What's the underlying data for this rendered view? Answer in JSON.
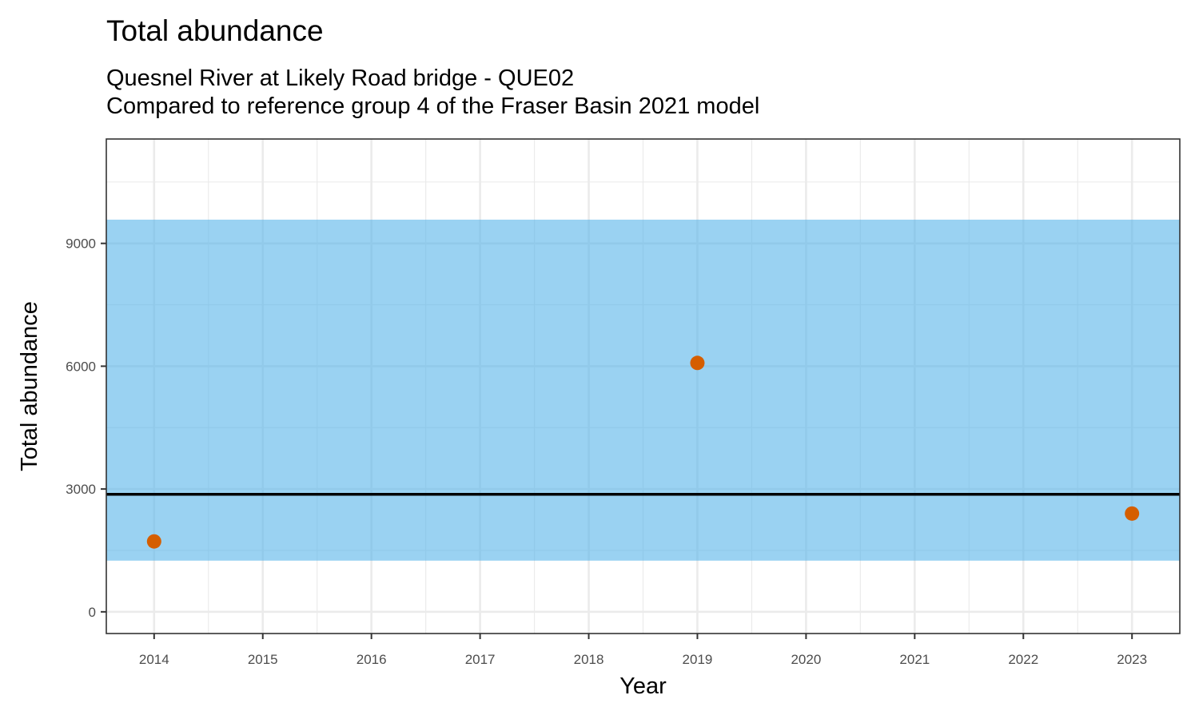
{
  "chart_data": {
    "type": "scatter",
    "title": "Total abundance",
    "subtitle_lines": [
      "Quesnel River at Likely Road bridge - QUE02",
      "Compared to reference group 4 of the Fraser Basin 2021 model"
    ],
    "xlabel": "Year",
    "ylabel": "Total abundance",
    "x_ticks": [
      2014,
      2015,
      2016,
      2017,
      2018,
      2019,
      2020,
      2021,
      2022,
      2023
    ],
    "y_ticks": [
      0,
      3000,
      6000,
      9000
    ],
    "xlim": [
      2013.56,
      2023.44
    ],
    "ylim": [
      -530,
      11550
    ],
    "grid": true,
    "series": [
      {
        "x": [
          2014,
          2019,
          2023
        ],
        "y": [
          1720,
          6080,
          2400
        ],
        "color": "#D55E00"
      }
    ],
    "reference_band": {
      "ymin": 1250,
      "ymax": 9580,
      "color": "#56B4E9",
      "opacity": 0.6
    },
    "reference_line": {
      "y": 2870,
      "color": "#000000"
    }
  }
}
